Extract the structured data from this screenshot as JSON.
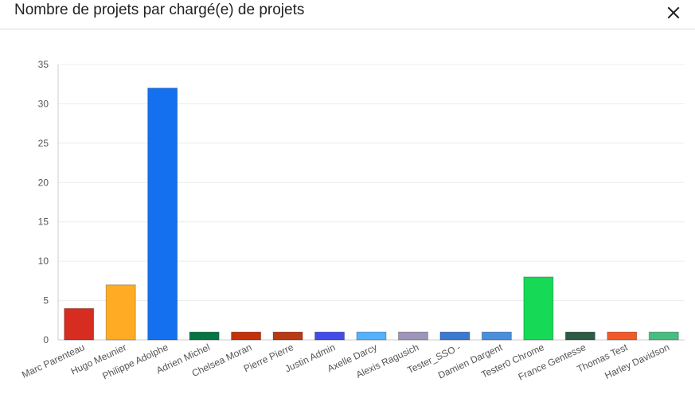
{
  "dialog": {
    "title": "Nombre de projets par chargé(e) de projets"
  },
  "chart_data": {
    "type": "bar",
    "categories": [
      "Marc Parenteau",
      "Hugo Meunier",
      "Philippe Adolphe",
      "Adrien Michel",
      "Chelsea Moran",
      "Pierre Pierre",
      "Justin Admin",
      "Axelle Darcy",
      "Alexis Ragusich",
      "Tester_SSO -",
      "Damien Dargent",
      "Tester0 Chrome",
      "France Gentesse",
      "Thomas Test",
      "Harley Davidson"
    ],
    "values": [
      4,
      7,
      32,
      1,
      1,
      1,
      1,
      1,
      1,
      1,
      1,
      8,
      1,
      1,
      1
    ],
    "colors": [
      "#d62d20",
      "#ffac24",
      "#1570ef",
      "#087443",
      "#c4320a",
      "#b93815",
      "#444ce7",
      "#53b1fd",
      "#9e95b9",
      "#3b7ad0",
      "#4a8fdb",
      "#16d955",
      "#2d5b43",
      "#f05a28",
      "#47bd7f"
    ],
    "ylim": [
      0,
      35
    ],
    "yticks": [
      0,
      5,
      10,
      15,
      20,
      25,
      30,
      35
    ],
    "grid": true,
    "legend": "none"
  }
}
